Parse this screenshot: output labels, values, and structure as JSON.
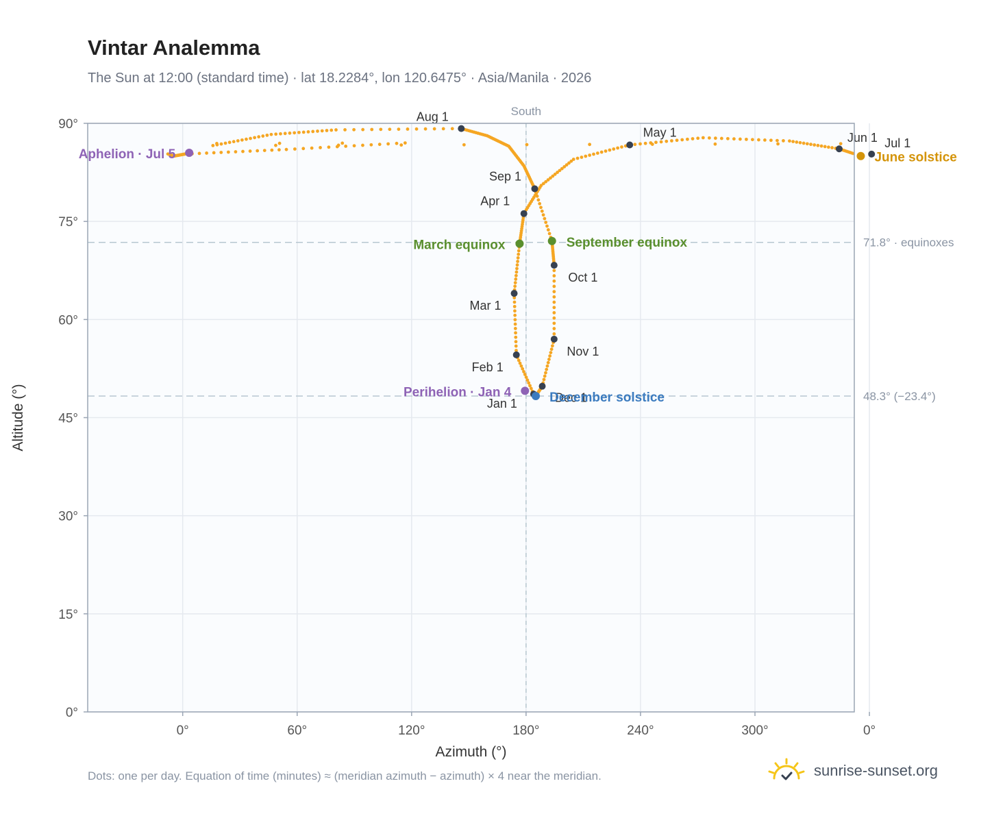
{
  "header": {
    "title": "Vintar Analemma",
    "subtitle": "The Sun at 12:00 (standard time) · lat 18.2284°, lon 120.6475° · Asia/Manila · 2026"
  },
  "footnote": "Dots: one per day. Equation of time (minutes) ≈ (meridian azimuth − azimuth) × 4 near the meridian.",
  "brand": {
    "name": "sunrise-sunset.org",
    "icon": "sun-logo-icon",
    "color": "#f5c518"
  },
  "colors": {
    "curve": "#f5a623",
    "month_dot": "#374151",
    "equinox": "#5a8f2e",
    "solstice_june": "#d4940a",
    "solstice_december": "#3b7bbf",
    "apsis": "#8e63b5",
    "plot_bg": "#fafcfe",
    "reference_line": "#b7c7d0"
  },
  "chart_data": {
    "type": "scatter",
    "xlabel": "Azimuth (°)",
    "ylabel": "Altitude (°)",
    "xlim": [
      -15,
      20.5
    ],
    "ylim": [
      0,
      90
    ],
    "x_axis_note": "azimuth measured from due south; tick labels wrap (0° = 360° north)",
    "x_ticks": [
      {
        "value": -10.6,
        "label": "0°"
      },
      {
        "value": -5.3,
        "label": "60°"
      },
      {
        "value": 0,
        "label": "120°"
      },
      {
        "value": 5.3,
        "label": "180°"
      },
      {
        "value": 10.6,
        "label": "240°"
      },
      {
        "value": 15.9,
        "label": "300°"
      },
      {
        "value": 21.2,
        "label": "0°"
      }
    ],
    "y_ticks": [
      {
        "value": 0,
        "label": "0°"
      },
      {
        "value": 15,
        "label": "15°"
      },
      {
        "value": 30,
        "label": "30°"
      },
      {
        "value": 45,
        "label": "45°"
      },
      {
        "value": 60,
        "label": "60°"
      },
      {
        "value": 75,
        "label": "75°"
      },
      {
        "value": 90,
        "label": "90°"
      }
    ],
    "grid": true,
    "meridian": {
      "x": 5.3,
      "label": "South"
    },
    "reference_lines": [
      {
        "y": 71.8,
        "label": "71.8° · equinoxes"
      },
      {
        "y": 48.3,
        "label": "48.3° (−23.4°)"
      }
    ],
    "month_markers": [
      {
        "label": "Jan 1",
        "x": 5.65,
        "y": 48.6
      },
      {
        "label": "Feb 1",
        "x": 4.85,
        "y": 54.6
      },
      {
        "label": "Mar 1",
        "x": 4.75,
        "y": 64.0
      },
      {
        "label": "Apr 1",
        "x": 5.2,
        "y": 76.2
      },
      {
        "label": "May 1",
        "x": 10.1,
        "y": 86.7
      },
      {
        "label": "Jun 1",
        "x": 19.8,
        "y": 86.1
      },
      {
        "label": "Jul 1",
        "x": 21.3,
        "y": 85.3
      },
      {
        "label": "Aug 1",
        "x": 2.3,
        "y": 89.2
      },
      {
        "label": "Sep 1",
        "x": 5.7,
        "y": 80.0
      },
      {
        "label": "Oct 1",
        "x": 6.6,
        "y": 68.3
      },
      {
        "label": "Nov 1",
        "x": 6.6,
        "y": 57.0
      },
      {
        "label": "Dec 1",
        "x": 6.05,
        "y": 49.8
      }
    ],
    "events": [
      {
        "label": "March equinox",
        "x": 5.0,
        "y": 71.6,
        "kind": "equinox"
      },
      {
        "label": "September equinox",
        "x": 6.5,
        "y": 72.0,
        "kind": "equinox"
      },
      {
        "label": "June solstice",
        "x": 20.8,
        "y": 85.0,
        "kind": "solstice_june"
      },
      {
        "label": "December solstice",
        "x": 5.75,
        "y": 48.3,
        "kind": "solstice_december"
      },
      {
        "label": "Perihelion · Jan 4",
        "x": 5.25,
        "y": 49.1,
        "kind": "apsis"
      },
      {
        "label": "Aphelion · Jul 5",
        "x": -10.3,
        "y": 85.5,
        "kind": "apsis"
      }
    ]
  }
}
